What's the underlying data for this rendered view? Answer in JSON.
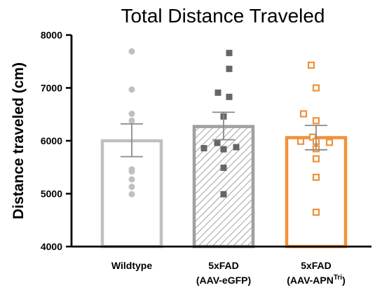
{
  "chart_data": {
    "type": "bar",
    "title": "Total Distance Traveled",
    "ylabel": "Distance traveled (cm)",
    "xlabel": "",
    "ylim": [
      4000,
      8000
    ],
    "yticks": [
      4000,
      5000,
      6000,
      7000,
      8000
    ],
    "categories": [
      {
        "line1": "Wildtype",
        "line2": "",
        "superscript": "",
        "line2_end": ""
      },
      {
        "line1": "5xFAD",
        "line2": "(AAV-eGFP)",
        "superscript": "",
        "line2_end": ""
      },
      {
        "line1": "5xFAD",
        "line2": "(AAV-APN",
        "superscript": "Tri",
        "line2_end": ")"
      }
    ],
    "series": [
      {
        "mean": 6000,
        "sem_upper": 6320,
        "sem_lower": 5700,
        "color": "#c0c0c0",
        "fill": "none",
        "marker": "circle",
        "points": [
          7690,
          6970,
          6510,
          6380,
          5460,
          5420,
          5270,
          5130,
          4990
        ]
      },
      {
        "mean": 6270,
        "sem_upper": 6540,
        "sem_lower": 6020,
        "color": "#a0a0a0",
        "fill": "hatched",
        "marker": "square",
        "marker_color": "#666666",
        "points": [
          7660,
          7360,
          6910,
          6830,
          6460,
          5960,
          5880,
          5860,
          5840,
          5490,
          4990
        ]
      },
      {
        "mean": 6060,
        "sem_upper": 6290,
        "sem_lower": 5830,
        "color": "#f0923a",
        "fill": "none",
        "marker": "open-square",
        "points": [
          7430,
          7000,
          6510,
          6380,
          6070,
          5990,
          5990,
          5970,
          5850,
          5660,
          5310,
          4650
        ]
      }
    ]
  }
}
